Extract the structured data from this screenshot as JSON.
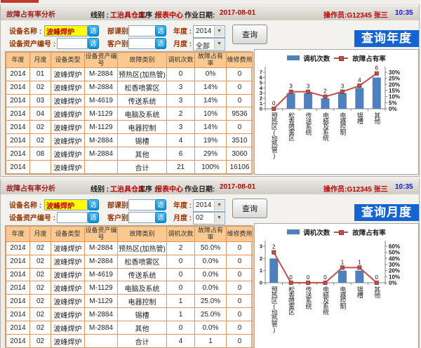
{
  "panels": [
    {
      "header": {
        "title": "故障占有率分析",
        "line_label": "线别 :",
        "line_value": "工治具仓库",
        "station_label": "工序 :",
        "station_value": "报表中心",
        "date_label": "作业日期:",
        "date_value": "2017-08-01",
        "operator": "操作员:G12345 张三",
        "time": "10:35"
      },
      "form": {
        "device_name_label": "设备名称 :",
        "device_name_value": "波峰焊炉",
        "asset_no_label": "设备资产编号 :",
        "asset_no_value": "",
        "dept_label": "部课别:",
        "dept_value": "",
        "customer_label": "客户别:",
        "customer_value": "",
        "year_label": "年度 :",
        "year_value": "2014",
        "month_label": "月度 :",
        "month_value": "全部",
        "select_button": "选",
        "query_button": "查询",
        "mode_badge": "查询年度"
      },
      "table": {
        "headers": [
          "年度",
          "月度",
          "设备类型",
          "设备资产编号",
          "故障类别",
          "调机次数",
          "故障占有率",
          "维修费用"
        ],
        "rows": [
          [
            "2014",
            "01",
            "波峰焊炉",
            "M-2884",
            "预热区(加热管)",
            "0",
            "0%",
            "0"
          ],
          [
            "2014",
            "02",
            "波峰焊炉",
            "M-2884",
            "松香喷雾区",
            "3",
            "14%",
            "0"
          ],
          [
            "2014",
            "03",
            "波峰焊炉",
            "M-4619",
            "传送系统",
            "3",
            "14%",
            "0"
          ],
          [
            "2014",
            "04",
            "波峰焊炉",
            "M-1129",
            "电脑及系统",
            "2",
            "10%",
            "9536"
          ],
          [
            "2014",
            "02",
            "波峰焊炉",
            "M-1129",
            "电器控制",
            "3",
            "14%",
            "0"
          ],
          [
            "2014",
            "02",
            "波峰焊炉",
            "M-2884",
            "锡槽",
            "4",
            "19%",
            "3510"
          ],
          [
            "2014",
            "08",
            "波峰焊炉",
            "M-2884",
            "其他",
            "6",
            "29%",
            "3060"
          ],
          [
            "2014",
            "",
            "波峰焊炉",
            "",
            "合计",
            "21",
            "100%",
            "16106"
          ]
        ]
      },
      "chart_data": {
        "type": "bar",
        "title": "",
        "categories": [
          "预热区(加热管)",
          "松香喷雾区",
          "传送系统",
          "电脑及系统",
          "电器控制",
          "锡槽",
          "其他"
        ],
        "series": [
          {
            "name": "调机次数",
            "type": "bar",
            "axis": "left",
            "color": "#4f81bd",
            "values": [
              0,
              3,
              3,
              2,
              3,
              4,
              6
            ]
          },
          {
            "name": "故障占有率",
            "type": "line",
            "axis": "right",
            "color": "#c0504d",
            "unit": "%",
            "values": [
              0,
              14,
              14,
              10,
              14,
              19,
              29
            ]
          }
        ],
        "point_labels": [
          0,
          3,
          3,
          2,
          3,
          4,
          6
        ],
        "left_axis": {
          "min": 0,
          "max": 7,
          "step": 1
        },
        "right_axis": {
          "min": 0,
          "max": 30,
          "step": 5,
          "suffix": "%"
        },
        "legend_position": "top",
        "grid": false
      }
    },
    {
      "header": {
        "title": "故障占有率分析",
        "line_label": "线别 :",
        "line_value": "工治具仓库",
        "station_label": "工序 :",
        "station_value": "报表中心",
        "date_label": "作业日期:",
        "date_value": "2017-08-01",
        "operator": "操作员:G12345 张三",
        "time": "10:35"
      },
      "form": {
        "device_name_label": "设备名称 :",
        "device_name_value": "波峰焊炉",
        "asset_no_label": "设备资产编号 :",
        "asset_no_value": "",
        "dept_label": "部课别:",
        "dept_value": "",
        "customer_label": "客户别:",
        "customer_value": "",
        "year_label": "年度 :",
        "year_value": "2014",
        "month_label": "月度 :",
        "month_value": "02",
        "select_button": "选",
        "query_button": "查询",
        "mode_badge": "查询月度"
      },
      "table": {
        "headers": [
          "年度",
          "月度",
          "设备类型",
          "设备资产编号",
          "故障类别",
          "调机次数",
          "故障占有率",
          "维修费用"
        ],
        "rows": [
          [
            "2014",
            "02",
            "波峰焊炉",
            "M-2884",
            "预热区(加热管)",
            "2",
            "50.0%",
            "0"
          ],
          [
            "2014",
            "02",
            "波峰焊炉",
            "M-2884",
            "松香喷雾区",
            "0",
            "0.0%",
            "0"
          ],
          [
            "2014",
            "02",
            "波峰焊炉",
            "M-4619",
            "传送系统",
            "0",
            "0.0%",
            "0"
          ],
          [
            "2014",
            "02",
            "波峰焊炉",
            "M-1129",
            "电脑及系统",
            "0",
            "0.0%",
            "0"
          ],
          [
            "2014",
            "02",
            "波峰焊炉",
            "M-1129",
            "电器控制",
            "1",
            "25.0%",
            "0"
          ],
          [
            "2014",
            "02",
            "波峰焊炉",
            "M-2884",
            "锡槽",
            "1",
            "25.0%",
            "0"
          ],
          [
            "2014",
            "02",
            "波峰焊炉",
            "M-2884",
            "其他",
            "0",
            "0.0%",
            "0"
          ],
          [
            "2014",
            "02",
            "波峰焊炉",
            "",
            "合计",
            "4",
            "1",
            "0"
          ]
        ]
      },
      "chart_data": {
        "type": "bar",
        "title": "",
        "categories": [
          "预热区(加热管)",
          "松香喷雾区",
          "传送系统",
          "电脑及系统",
          "电器控制",
          "锡槽",
          "其他"
        ],
        "series": [
          {
            "name": "调机次数",
            "type": "bar",
            "axis": "left",
            "color": "#4f81bd",
            "values": [
              2,
              0,
              0,
              0,
              1,
              1,
              0
            ]
          },
          {
            "name": "故障占有率",
            "type": "line",
            "axis": "right",
            "color": "#c0504d",
            "unit": "%",
            "values": [
              50,
              0,
              0,
              0,
              25,
              25,
              0
            ]
          }
        ],
        "point_labels": [
          2,
          0,
          0,
          0,
          1,
          1,
          0
        ],
        "left_axis": {
          "min": 0,
          "max": 3,
          "step": 1
        },
        "right_axis": {
          "min": 0,
          "max": 60,
          "step": 10,
          "suffix": "%"
        },
        "legend_position": "top",
        "grid": false
      }
    }
  ]
}
